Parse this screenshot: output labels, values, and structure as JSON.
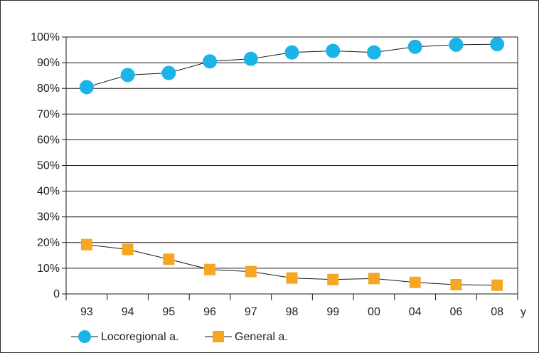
{
  "chart_data": {
    "type": "line",
    "title": "",
    "xlabel": "y",
    "ylabel": "",
    "categories": [
      "93",
      "94",
      "95",
      "96",
      "97",
      "98",
      "99",
      "00",
      "04",
      "06",
      "08"
    ],
    "y_ticks": [
      "0",
      "10%",
      "20%",
      "30%",
      "40%",
      "50%",
      "60%",
      "70%",
      "80%",
      "90%",
      "100%"
    ],
    "ylim": [
      0,
      100
    ],
    "grid": true,
    "legend_position": "bottom-left",
    "series": [
      {
        "name": "Locoregional a.",
        "marker": "circle",
        "color": "#1ab4e8",
        "values": [
          80.5,
          85.2,
          86.0,
          90.5,
          91.5,
          94.0,
          94.6,
          94.0,
          96.2,
          97.0,
          97.2
        ]
      },
      {
        "name": "General a.",
        "marker": "square",
        "color": "#f5a623",
        "values": [
          19.2,
          17.3,
          13.5,
          9.5,
          8.7,
          6.2,
          5.6,
          6.0,
          4.5,
          3.6,
          3.4
        ]
      }
    ]
  }
}
